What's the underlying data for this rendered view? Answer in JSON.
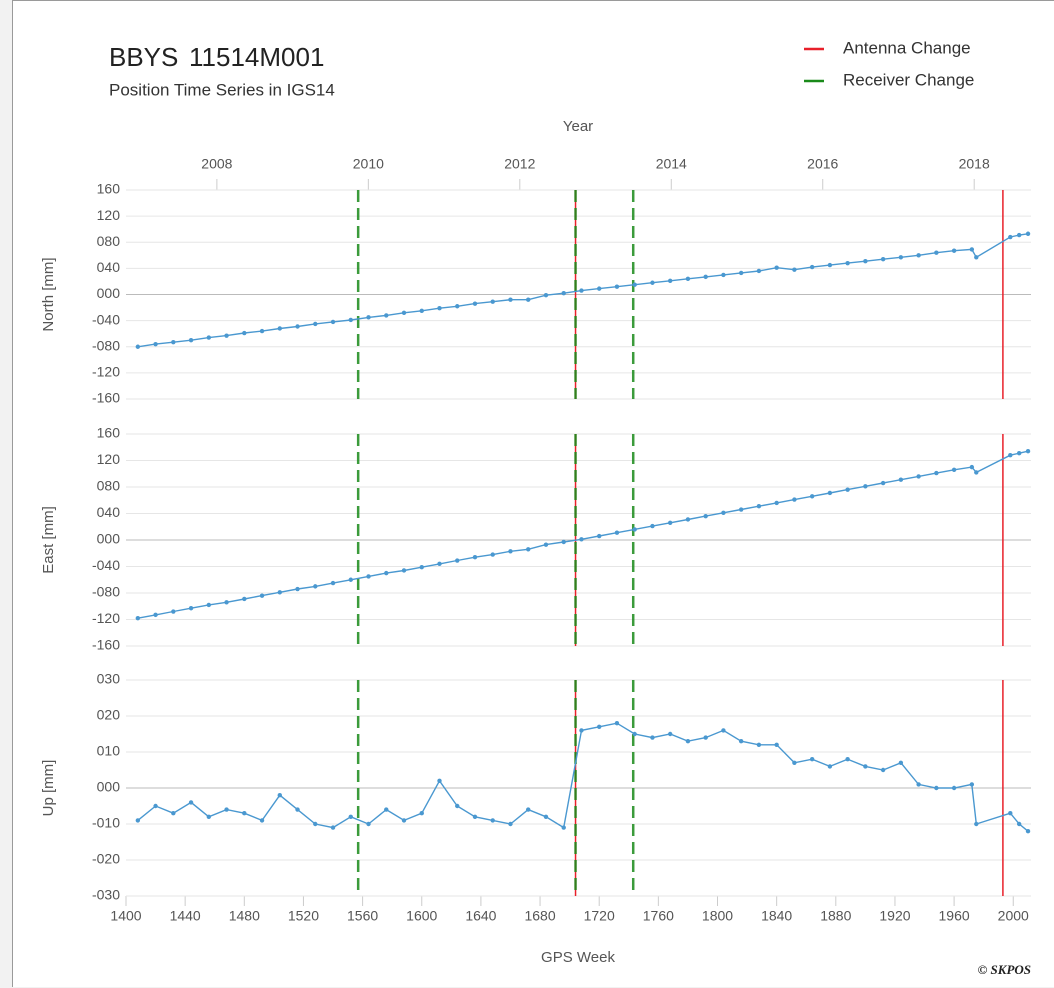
{
  "chart_data": {
    "type": "line",
    "title": "BBYS",
    "station_id": "11514M001",
    "subtitle": "Position Time Series in IGS14",
    "x2_label": "Year",
    "xlabel": "GPS Week",
    "copyright": "© SKPOS",
    "legend": "upper right",
    "grid": true,
    "color": "#4a98d0",
    "xlim": [
      1400,
      2012
    ],
    "xticks": [
      1400,
      1440,
      1480,
      1520,
      1560,
      1600,
      1640,
      1680,
      1720,
      1760,
      1800,
      1840,
      1880,
      1920,
      1960,
      2000
    ],
    "x2lim": [
      2006.8,
      2018.75
    ],
    "x2ticks": [
      2008,
      2010,
      2012,
      2014,
      2016,
      2018
    ],
    "x": [
      1408,
      1420,
      1432,
      1444,
      1456,
      1468,
      1480,
      1492,
      1504,
      1516,
      1528,
      1540,
      1552,
      1564,
      1576,
      1588,
      1600,
      1612,
      1624,
      1636,
      1648,
      1660,
      1672,
      1684,
      1696,
      1708,
      1720,
      1732,
      1744,
      1756,
      1768,
      1780,
      1792,
      1804,
      1816,
      1828,
      1840,
      1852,
      1864,
      1876,
      1888,
      1900,
      1912,
      1924,
      1936,
      1948,
      1960,
      1972,
      1975,
      1998,
      2004,
      2010
    ],
    "panels": [
      {
        "ylabel": "North [mm]",
        "ylim": [
          -160,
          160
        ],
        "yticks": [
          160,
          120,
          {
            "value": 80,
            "label": "080"
          },
          {
            "value": 40,
            "label": "040"
          },
          {
            "value": 0,
            "label": "000"
          },
          {
            "value": -40,
            "label": "-040"
          },
          {
            "value": -80,
            "label": "-080"
          },
          -120,
          -160
        ],
        "values": [
          -80,
          -76,
          -73,
          -70,
          -66,
          -63,
          -59,
          -56,
          -52,
          -49,
          -45,
          -42,
          -39,
          -35,
          -32,
          -28,
          -25,
          -21,
          -18,
          -14,
          -11,
          -8,
          -8,
          -1,
          2,
          6,
          9,
          12,
          15,
          18,
          21,
          24,
          27,
          30,
          33,
          36,
          41,
          38,
          42,
          45,
          48,
          51,
          54,
          57,
          60,
          64,
          67,
          69,
          57,
          88,
          91,
          93
        ]
      },
      {
        "ylabel": "East [mm]",
        "ylim": [
          -160,
          160
        ],
        "yticks": [
          160,
          120,
          {
            "value": 80,
            "label": "080"
          },
          {
            "value": 40,
            "label": "040"
          },
          {
            "value": 0,
            "label": "000"
          },
          {
            "value": -40,
            "label": "-040"
          },
          {
            "value": -80,
            "label": "-080"
          },
          -120,
          -160
        ],
        "values": [
          -118,
          -113,
          -108,
          -103,
          -98,
          -94,
          -89,
          -84,
          -79,
          -74,
          -70,
          -65,
          -60,
          -55,
          -50,
          -46,
          -41,
          -36,
          -31,
          -26,
          -22,
          -17,
          -14,
          -7,
          -3,
          1,
          6,
          11,
          16,
          21,
          26,
          31,
          36,
          41,
          46,
          51,
          56,
          61,
          66,
          71,
          76,
          81,
          86,
          91,
          96,
          101,
          106,
          110,
          102,
          128,
          131,
          134
        ]
      },
      {
        "ylabel": "Up [mm]",
        "ylim": [
          -30,
          30
        ],
        "yticks": [
          {
            "value": 30,
            "label": "030"
          },
          {
            "value": 20,
            "label": "020"
          },
          {
            "value": 10,
            "label": "010"
          },
          {
            "value": 0,
            "label": "000"
          },
          {
            "value": -10,
            "label": "-010"
          },
          {
            "value": -20,
            "label": "-020"
          },
          {
            "value": -30,
            "label": "-030"
          }
        ],
        "values": [
          -9,
          -5,
          -7,
          -4,
          -8,
          -6,
          -7,
          -9,
          -2,
          -6,
          -10,
          -11,
          -8,
          -10,
          -6,
          -9,
          -7,
          2,
          -5,
          -8,
          -9,
          -10,
          -6,
          -8,
          -11,
          16,
          17,
          18,
          15,
          14,
          15,
          13,
          14,
          16,
          13,
          12,
          12,
          7,
          8,
          6,
          8,
          6,
          5,
          7,
          1,
          0,
          0,
          1,
          -10,
          -7,
          -10,
          -12
        ]
      }
    ],
    "events": [
      {
        "name": "Antenna Change",
        "color": "#e8202a",
        "dashed": false,
        "weeks": [
          1704,
          1993
        ]
      },
      {
        "name": "Receiver Change",
        "color": "#1a8a1a",
        "dashed": true,
        "weeks": [
          1557,
          1704,
          1743
        ]
      }
    ]
  }
}
